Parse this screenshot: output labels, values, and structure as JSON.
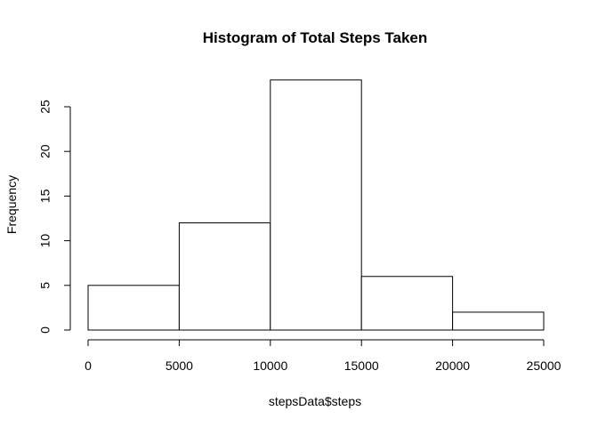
{
  "chart_data": {
    "type": "histogram",
    "title": "Histogram of Total Steps Taken",
    "xlabel": "stepsData$steps",
    "ylabel": "Frequency",
    "bins": [
      {
        "start": 0,
        "end": 5000,
        "count": 5
      },
      {
        "start": 5000,
        "end": 10000,
        "count": 12
      },
      {
        "start": 10000,
        "end": 15000,
        "count": 28
      },
      {
        "start": 15000,
        "end": 20000,
        "count": 6
      },
      {
        "start": 20000,
        "end": 25000,
        "count": 2
      }
    ],
    "xlim": [
      0,
      25000
    ],
    "ylim": [
      0,
      28
    ],
    "x_ticks": [
      0,
      5000,
      10000,
      15000,
      20000,
      25000
    ],
    "y_ticks": [
      0,
      5,
      10,
      15,
      20,
      25
    ],
    "bar_fill": "#ffffff",
    "bar_stroke": "#000000",
    "grid": false,
    "legend": false
  }
}
